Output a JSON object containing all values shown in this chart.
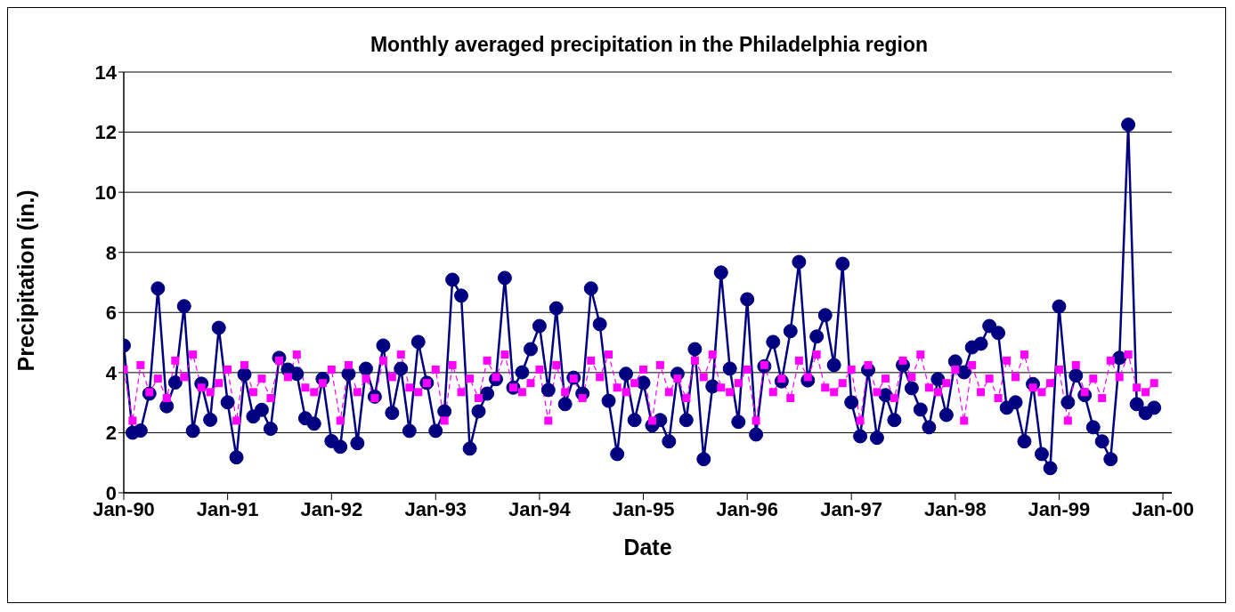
{
  "chart_data": {
    "type": "line",
    "title": "Monthly averaged precipitation in the Philadelphia region",
    "xlabel": "Date",
    "ylabel": "Precipitation (in.)",
    "x": [
      "1990-01",
      "1990-02",
      "1990-03",
      "1990-04",
      "1990-05",
      "1990-06",
      "1990-07",
      "1990-08",
      "1990-09",
      "1990-10",
      "1990-11",
      "1990-12",
      "1991-01",
      "1991-02",
      "1991-03",
      "1991-04",
      "1991-05",
      "1991-06",
      "1991-07",
      "1991-08",
      "1991-09",
      "1991-10",
      "1991-11",
      "1991-12",
      "1992-01",
      "1992-02",
      "1992-03",
      "1992-04",
      "1992-05",
      "1992-06",
      "1992-07",
      "1992-08",
      "1992-09",
      "1992-10",
      "1992-11",
      "1992-12",
      "1993-01",
      "1993-02",
      "1993-03",
      "1993-04",
      "1993-05",
      "1993-06",
      "1993-07",
      "1993-08",
      "1993-09",
      "1993-10",
      "1993-11",
      "1993-12",
      "1994-01",
      "1994-02",
      "1994-03",
      "1994-04",
      "1994-05",
      "1994-06",
      "1994-07",
      "1994-08",
      "1994-09",
      "1994-10",
      "1994-11",
      "1994-12",
      "1995-01",
      "1995-02",
      "1995-03",
      "1995-04",
      "1995-05",
      "1995-06",
      "1995-07",
      "1995-08",
      "1995-09",
      "1995-10",
      "1995-11",
      "1995-12",
      "1996-01",
      "1996-02",
      "1996-03",
      "1996-04",
      "1996-05",
      "1996-06",
      "1996-07",
      "1996-08",
      "1996-09",
      "1996-10",
      "1996-11",
      "1996-12",
      "1997-01",
      "1997-02",
      "1997-03",
      "1997-04",
      "1997-05",
      "1997-06",
      "1997-07",
      "1997-08",
      "1997-09",
      "1997-10",
      "1997-11",
      "1997-12",
      "1998-01",
      "1998-02",
      "1998-03",
      "1998-04",
      "1998-05",
      "1998-06",
      "1998-07",
      "1998-08",
      "1998-09",
      "1998-10",
      "1998-11",
      "1998-12",
      "1999-01",
      "1999-02",
      "1999-03",
      "1999-04",
      "1999-05",
      "1999-06",
      "1999-07",
      "1999-08",
      "1999-09",
      "1999-10",
      "1999-11",
      "1999-12"
    ],
    "series": [
      {
        "color": "#000080",
        "marker": "circle",
        "line_style": "solid",
        "values": [
          4.9,
          2.0,
          2.07,
          3.3,
          6.8,
          2.88,
          3.67,
          6.21,
          2.06,
          3.63,
          2.43,
          5.49,
          3.01,
          1.18,
          3.94,
          2.54,
          2.76,
          2.13,
          4.49,
          4.1,
          3.96,
          2.48,
          2.3,
          3.79,
          1.72,
          1.53,
          3.96,
          1.65,
          4.13,
          3.2,
          4.9,
          2.66,
          4.13,
          2.06,
          5.02,
          3.66,
          2.06,
          2.71,
          7.09,
          6.56,
          1.47,
          2.71,
          3.3,
          3.78,
          7.15,
          3.5,
          4.01,
          4.78,
          5.55,
          3.42,
          6.14,
          2.95,
          3.83,
          3.3,
          6.8,
          5.61,
          3.06,
          1.29,
          3.96,
          2.42,
          3.66,
          2.24,
          2.42,
          1.71,
          3.96,
          2.42,
          4.78,
          1.12,
          3.54,
          7.33,
          4.13,
          2.36,
          6.44,
          1.94,
          4.21,
          5.02,
          3.71,
          5.38,
          7.68,
          3.74,
          5.2,
          5.91,
          4.25,
          7.62,
          3.01,
          1.88,
          4.09,
          1.83,
          3.25,
          2.42,
          4.25,
          3.48,
          2.77,
          2.18,
          3.78,
          2.59,
          4.37,
          4.01,
          4.84,
          4.96,
          5.55,
          5.32,
          2.83,
          3.01,
          1.71,
          3.62,
          1.29,
          0.82,
          6.2,
          3.01,
          3.9,
          3.25,
          2.18,
          1.71,
          1.12,
          4.49,
          12.25,
          2.95,
          2.65,
          2.83
        ]
      },
      {
        "color": "#ff00ff",
        "marker": "square",
        "line_style": "dashed",
        "values": [
          4.1,
          2.4,
          4.25,
          3.35,
          3.8,
          3.15,
          4.4,
          3.85,
          4.6,
          3.5,
          3.35,
          3.65,
          4.1,
          2.4,
          4.25,
          3.35,
          3.8,
          3.15,
          4.4,
          3.85,
          4.6,
          3.5,
          3.35,
          3.65,
          4.1,
          2.4,
          4.25,
          3.35,
          3.8,
          3.15,
          4.4,
          3.85,
          4.6,
          3.5,
          3.35,
          3.65,
          4.1,
          2.4,
          4.25,
          3.35,
          3.8,
          3.15,
          4.4,
          3.85,
          4.6,
          3.5,
          3.35,
          3.65,
          4.1,
          2.4,
          4.25,
          3.35,
          3.8,
          3.15,
          4.4,
          3.85,
          4.6,
          3.5,
          3.35,
          3.65,
          4.1,
          2.4,
          4.25,
          3.35,
          3.8,
          3.15,
          4.4,
          3.85,
          4.6,
          3.5,
          3.35,
          3.65,
          4.1,
          2.4,
          4.25,
          3.35,
          3.8,
          3.15,
          4.4,
          3.85,
          4.6,
          3.5,
          3.35,
          3.65,
          4.1,
          2.4,
          4.25,
          3.35,
          3.8,
          3.15,
          4.4,
          3.85,
          4.6,
          3.5,
          3.35,
          3.65,
          4.1,
          2.4,
          4.25,
          3.35,
          3.8,
          3.15,
          4.4,
          3.85,
          4.6,
          3.5,
          3.35,
          3.65,
          4.1,
          2.4,
          4.25,
          3.35,
          3.8,
          3.15,
          4.4,
          3.85,
          4.6,
          3.5,
          3.35,
          3.65
        ]
      }
    ],
    "xlim": [
      "1990-01",
      "2000-02"
    ],
    "xticks": [
      {
        "value": "1990-01",
        "label": "Jan-90"
      },
      {
        "value": "1991-01",
        "label": "Jan-91"
      },
      {
        "value": "1992-01",
        "label": "Jan-92"
      },
      {
        "value": "1993-01",
        "label": "Jan-93"
      },
      {
        "value": "1994-01",
        "label": "Jan-94"
      },
      {
        "value": "1995-01",
        "label": "Jan-95"
      },
      {
        "value": "1996-01",
        "label": "Jan-96"
      },
      {
        "value": "1997-01",
        "label": "Jan-97"
      },
      {
        "value": "1998-01",
        "label": "Jan-98"
      },
      {
        "value": "1999-01",
        "label": "Jan-99"
      },
      {
        "value": "2000-01",
        "label": "Jan-00"
      }
    ],
    "ylim": [
      0,
      14
    ],
    "yticks": [
      0,
      2,
      4,
      6,
      8,
      10,
      12,
      14
    ],
    "grid": "y"
  }
}
